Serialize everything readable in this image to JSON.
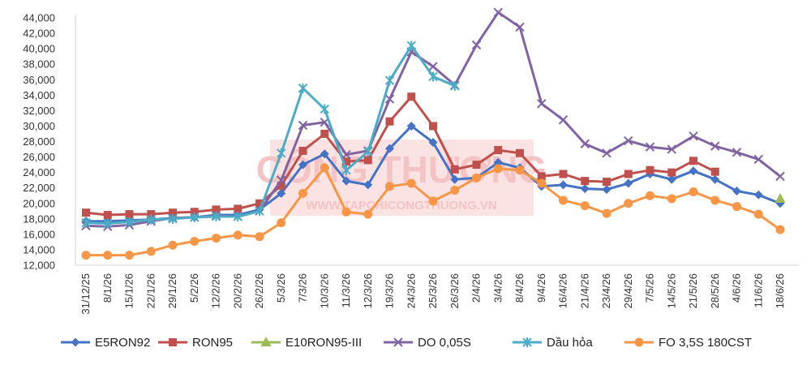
{
  "watermark": {
    "main": "CÔNG THƯƠNG",
    "sub": "WWW.TAPCHICONGTHUONG.VN",
    "color": "#f2b6b6"
  },
  "chart_data": {
    "type": "line",
    "categories": [
      "31/12/25",
      "8/1/26",
      "15/1/26",
      "22/1/26",
      "29/1/26",
      "5/2/26",
      "12/2/26",
      "20/2/26",
      "26/2/26",
      "5/3/26",
      "7/3/26",
      "10/3/26",
      "11/3/26",
      "12/3/26",
      "19/3/26",
      "24/3/26",
      "25/3/26",
      "26/3/26",
      "2/4/26",
      "3/4/26",
      "8/4/26",
      "9/4/26",
      "16/4/26",
      "21/4/26",
      "23/4/26",
      "29/4/26",
      "7/5/26",
      "14/5/26",
      "21/5/26",
      "28/5/26",
      "4/6/26",
      "11/6/26",
      "18/6/26"
    ],
    "yticks": [
      "12,000",
      "14,000",
      "16,000",
      "18,000",
      "20,000",
      "22,000",
      "24,000",
      "26,000",
      "28,000",
      "30,000",
      "32,000",
      "34,000",
      "36,000",
      "38,000",
      "40,000",
      "42,000",
      "44,000"
    ],
    "ylim": [
      12000,
      44000
    ],
    "grid": false,
    "legend_position": "bottom",
    "series": [
      {
        "name": "E5RON92",
        "color": "#4472c4",
        "marker": "diamond",
        "values": [
          17700,
          17700,
          17800,
          17900,
          18100,
          18200,
          18500,
          18500,
          19200,
          21300,
          25000,
          26400,
          22900,
          22400,
          27100,
          30000,
          27900,
          23100,
          23300,
          25300,
          24600,
          22200,
          22400,
          21900,
          21800,
          22600,
          23800,
          23100,
          24200,
          23100,
          21600,
          21100,
          20000
        ]
      },
      {
        "name": "RON95",
        "color": "#c0504d",
        "marker": "square",
        "values": [
          18800,
          18500,
          18600,
          18600,
          18800,
          18900,
          19200,
          19300,
          20000,
          22300,
          26800,
          29000,
          25400,
          25600,
          30600,
          33800,
          30000,
          24400,
          25000,
          26900,
          26500,
          23500,
          23800,
          22900,
          22800,
          23800,
          24300,
          24000,
          25500,
          24100,
          null,
          null,
          null
        ]
      },
      {
        "name": "E10RON95-III",
        "color": "#9bbb59",
        "marker": "triangle",
        "values": [
          null,
          null,
          null,
          null,
          null,
          null,
          null,
          null,
          null,
          null,
          null,
          null,
          null,
          null,
          null,
          null,
          null,
          null,
          null,
          null,
          null,
          null,
          null,
          null,
          null,
          null,
          null,
          null,
          null,
          null,
          null,
          null,
          20600
        ]
      },
      {
        "name": "DO 0,05S",
        "color": "#8064a2",
        "marker": "x",
        "values": [
          17100,
          17000,
          17200,
          17700,
          18100,
          18200,
          18400,
          18300,
          19000,
          23000,
          30100,
          30500,
          26300,
          26800,
          33500,
          39600,
          37700,
          35300,
          40500,
          44700,
          42800,
          32900,
          30800,
          27700,
          26500,
          28100,
          27300,
          27000,
          28700,
          27400,
          26600,
          25700,
          23500
        ]
      },
      {
        "name": "Dầu hỏa",
        "color": "#4bacc6",
        "marker": "star",
        "values": [
          17500,
          17400,
          17600,
          17900,
          18000,
          18200,
          18300,
          18300,
          19000,
          26500,
          34900,
          32200,
          24300,
          26700,
          35900,
          40400,
          36400,
          35200,
          null,
          null,
          null,
          null,
          null,
          null,
          null,
          null,
          null,
          null,
          null,
          null,
          null,
          null,
          null
        ]
      },
      {
        "name": "FO 3,5S 180CST",
        "color": "#f79646",
        "marker": "circle",
        "values": [
          13300,
          13300,
          13300,
          13800,
          14600,
          15100,
          15500,
          15900,
          15700,
          17500,
          21300,
          24600,
          18900,
          18600,
          22200,
          22600,
          20300,
          21700,
          23300,
          24500,
          24300,
          22600,
          20400,
          19700,
          18700,
          20000,
          21000,
          20600,
          21500,
          20400,
          19600,
          18600,
          16600
        ]
      }
    ]
  }
}
